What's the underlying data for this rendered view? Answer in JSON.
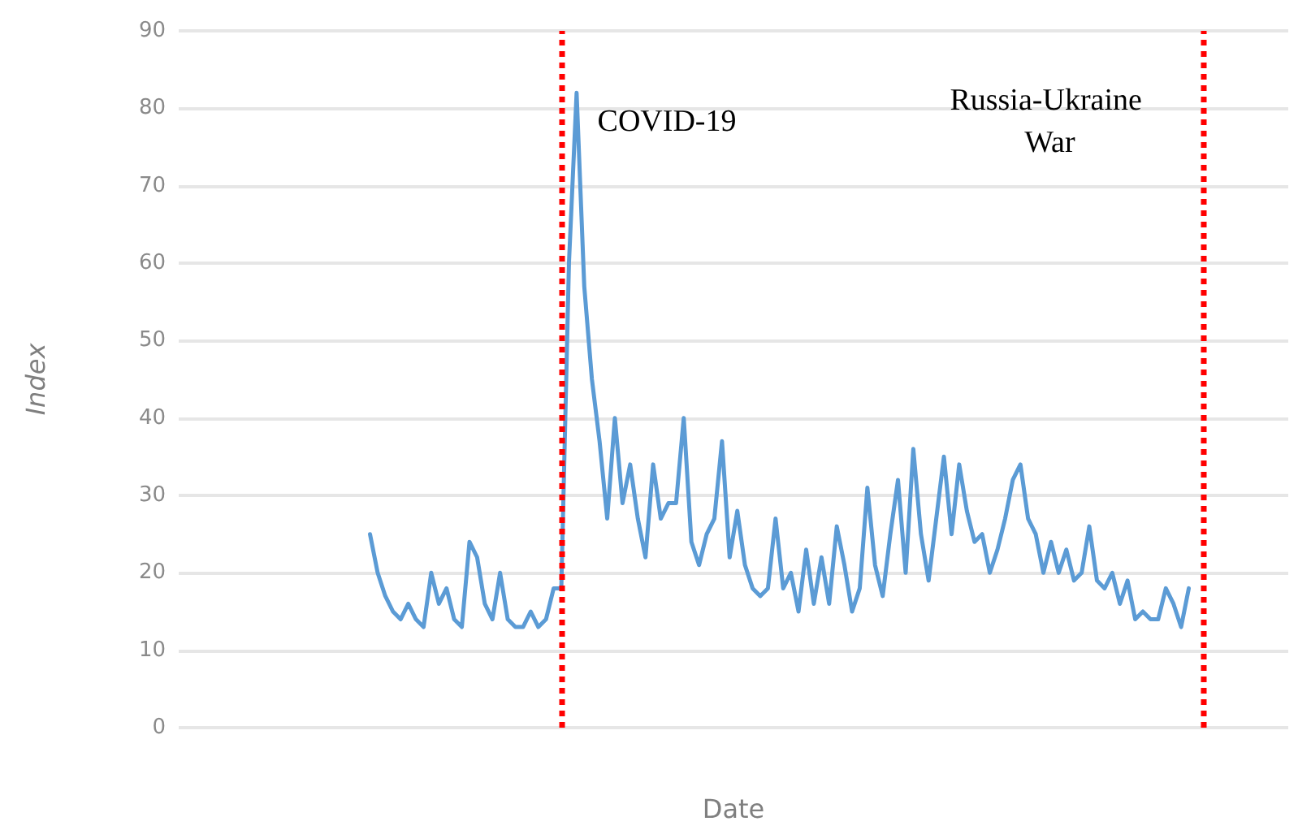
{
  "chart_data": {
    "type": "line",
    "xlabel": "Date",
    "ylabel": "Index",
    "categories": [
      null,
      null,
      null,
      null,
      null,
      null,
      null,
      null,
      null,
      null,
      null,
      null,
      null,
      null,
      null,
      null,
      null,
      null,
      null,
      null,
      null,
      null,
      null,
      null,
      null,
      null,
      null,
      null,
      null,
      null,
      null,
      null,
      null,
      null,
      null,
      null,
      null,
      null,
      null,
      null,
      null,
      null,
      null,
      null,
      null,
      null,
      null,
      null,
      null,
      null,
      null,
      null,
      null,
      null,
      null,
      null,
      null,
      null,
      null,
      null,
      null,
      null,
      null,
      null,
      null,
      null,
      null,
      null,
      null,
      null,
      null,
      null,
      null,
      null,
      null,
      null,
      null,
      null,
      null,
      null,
      null,
      null,
      null,
      null,
      null,
      null,
      null,
      null,
      null,
      null,
      null,
      null,
      null,
      null,
      null,
      null,
      null,
      null,
      null,
      null,
      null,
      null,
      null,
      null,
      null,
      null,
      null,
      null,
      null,
      null,
      null,
      null,
      null,
      null,
      null,
      null,
      null,
      null,
      null,
      null,
      null,
      null,
      null,
      null,
      null,
      null,
      null,
      null,
      null,
      null,
      null,
      null,
      null,
      null,
      null,
      null,
      null,
      null,
      null,
      null,
      null,
      null,
      null,
      null,
      null,
      null
    ],
    "series": [
      {
        "color": "#5b9bd5",
        "values": [
          null,
          null,
          null,
          null,
          null,
          null,
          null,
          null,
          null,
          null,
          null,
          null,
          null,
          null,
          null,
          null,
          null,
          null,
          null,
          null,
          null,
          null,
          null,
          null,
          null,
          25,
          20,
          17,
          15,
          14,
          16,
          14,
          13,
          20,
          16,
          18,
          14,
          13,
          24,
          22,
          16,
          14,
          20,
          14,
          13,
          13,
          15,
          13,
          14,
          18,
          18,
          60,
          82,
          57,
          45,
          37,
          27,
          40,
          29,
          34,
          27,
          22,
          34,
          27,
          29,
          29,
          40,
          24,
          21,
          25,
          27,
          37,
          22,
          28,
          21,
          18,
          17,
          18,
          27,
          18,
          20,
          15,
          23,
          16,
          22,
          16,
          26,
          21,
          15,
          18,
          31,
          21,
          17,
          25,
          32,
          20,
          36,
          25,
          19,
          27,
          35,
          25,
          34,
          28,
          24,
          25,
          20,
          23,
          27,
          32,
          34,
          27,
          25,
          20,
          24,
          20,
          23,
          19,
          20,
          26,
          19,
          18,
          20,
          16,
          19,
          14,
          15,
          14,
          14,
          18,
          16,
          13,
          18,
          null,
          null,
          null,
          null,
          null,
          null,
          null,
          null,
          null,
          null,
          null,
          null,
          null
        ]
      }
    ],
    "ylim": [
      0,
      90
    ],
    "yticks": [
      0,
      10,
      20,
      30,
      40,
      50,
      60,
      70,
      80,
      90
    ],
    "grid": "y",
    "marker": "none",
    "line_style": "solid",
    "annotations": [
      "COVID-19",
      "Russia-Ukraine War"
    ]
  }
}
